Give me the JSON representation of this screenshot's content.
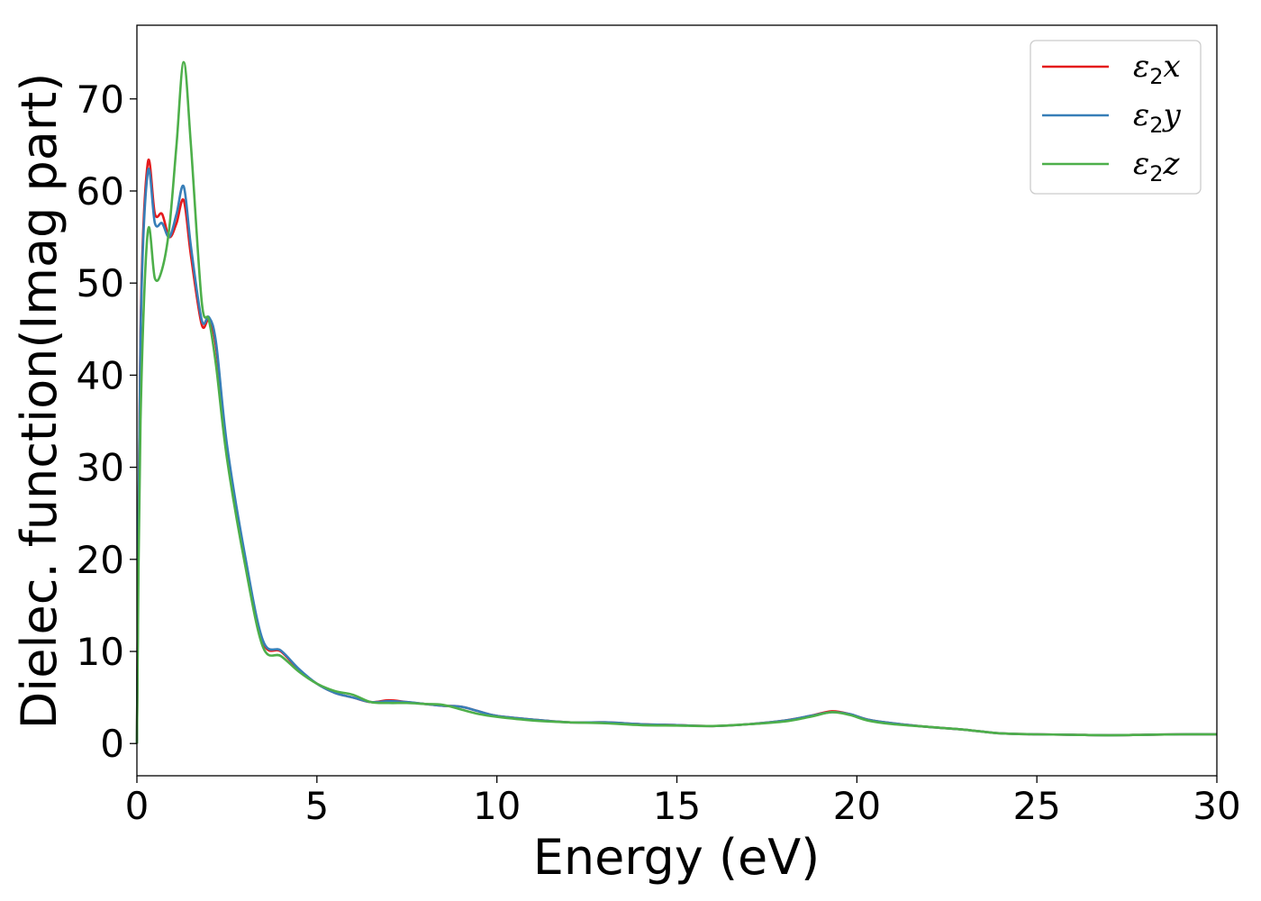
{
  "chart_data": {
    "type": "line",
    "title": "",
    "xlabel": "Energy (eV)",
    "ylabel": "Dielec. function(Imag part)",
    "xlim": [
      0,
      30
    ],
    "ylim": [
      -3.5,
      78
    ],
    "xticks": [
      0,
      5,
      10,
      15,
      20,
      25,
      30
    ],
    "yticks": [
      0,
      10,
      20,
      30,
      40,
      50,
      60,
      70
    ],
    "grid": false,
    "legend_position": "top-right",
    "x": [
      0,
      0.1,
      0.3,
      0.5,
      0.7,
      0.9,
      1.1,
      1.3,
      1.5,
      1.8,
      2.0,
      2.2,
      2.5,
      3.0,
      3.5,
      4.0,
      4.5,
      5.0,
      5.5,
      6.0,
      6.5,
      7.0,
      7.5,
      8.0,
      8.5,
      9.0,
      9.5,
      10.0,
      11.0,
      12.0,
      13.0,
      14.0,
      15.0,
      16.0,
      17.0,
      18.0,
      18.7,
      19.3,
      19.8,
      20.3,
      21.0,
      22.0,
      23.0,
      24.0,
      25.0,
      26.0,
      27.0,
      28.0,
      29.0,
      30.0
    ],
    "series": [
      {
        "name_base": "ε",
        "name_sub": "2",
        "name_suffix": "x",
        "color": "#e41a1c",
        "values": [
          0,
          45,
          63,
          57.5,
          57.5,
          55,
          56.5,
          59,
          53,
          45.5,
          46,
          43,
          32,
          20,
          11,
          10,
          8,
          6.5,
          5.5,
          5,
          4.5,
          4.7,
          4.5,
          4.3,
          4.1,
          4.0,
          3.5,
          3.0,
          2.6,
          2.3,
          2.3,
          2.1,
          2.0,
          1.9,
          2.1,
          2.5,
          3.0,
          3.5,
          3.2,
          2.6,
          2.2,
          1.8,
          1.5,
          1.1,
          1.0,
          0.95,
          0.9,
          0.95,
          1.0,
          1.0
        ]
      },
      {
        "name_base": "ε",
        "name_sub": "2",
        "name_suffix": "y",
        "color": "#377eb8",
        "values": [
          0,
          44,
          62,
          56.5,
          56.5,
          55,
          57.5,
          60.5,
          54,
          46,
          46.3,
          43.5,
          32.5,
          20.5,
          11.2,
          10.1,
          8.1,
          6.5,
          5.5,
          5,
          4.5,
          4.6,
          4.5,
          4.3,
          4.1,
          4.0,
          3.5,
          3.0,
          2.6,
          2.3,
          2.3,
          2.1,
          2.0,
          1.9,
          2.1,
          2.5,
          3.0,
          3.4,
          3.2,
          2.6,
          2.2,
          1.8,
          1.5,
          1.1,
          1.0,
          0.95,
          0.9,
          0.95,
          1.0,
          1.0
        ]
      },
      {
        "name_base": "ε",
        "name_sub": "2",
        "name_suffix": "z",
        "color": "#4daf4a",
        "values": [
          0,
          35,
          55.5,
          50.5,
          51.5,
          56,
          65,
          74,
          65,
          48,
          46,
          41,
          31,
          19.5,
          10.5,
          9.5,
          7.8,
          6.5,
          5.7,
          5.3,
          4.5,
          4.4,
          4.4,
          4.3,
          4.2,
          3.7,
          3.2,
          2.9,
          2.5,
          2.3,
          2.2,
          2.0,
          1.95,
          1.9,
          2.1,
          2.4,
          2.9,
          3.4,
          3.1,
          2.5,
          2.1,
          1.8,
          1.5,
          1.1,
          1.0,
          0.95,
          0.9,
          0.95,
          1.0,
          1.0
        ]
      }
    ]
  }
}
